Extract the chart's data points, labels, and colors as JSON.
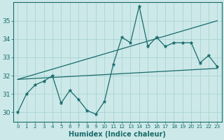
{
  "xlabel": "Humidex (Indice chaleur)",
  "bg_color": "#cce8e8",
  "line_color": "#1a6b6b",
  "grid_color": "#aad4d4",
  "ylim": [
    29.5,
    36.0
  ],
  "xlim": [
    -0.5,
    23.5
  ],
  "yticks": [
    30,
    31,
    32,
    33,
    34,
    35
  ],
  "xticks": [
    0,
    1,
    2,
    3,
    4,
    5,
    6,
    7,
    8,
    9,
    10,
    11,
    12,
    13,
    14,
    15,
    16,
    17,
    18,
    19,
    20,
    21,
    22,
    23
  ],
  "data_x": [
    0,
    1,
    2,
    3,
    4,
    5,
    6,
    7,
    8,
    9,
    10,
    11,
    12,
    13,
    14,
    15,
    16,
    17,
    18,
    19,
    20,
    21,
    22,
    23
  ],
  "data_y": [
    30.0,
    31.0,
    31.5,
    31.7,
    32.0,
    30.5,
    31.2,
    30.7,
    30.1,
    29.9,
    30.6,
    32.6,
    34.1,
    33.8,
    35.8,
    33.6,
    34.1,
    33.6,
    33.8,
    33.8,
    33.8,
    32.7,
    33.1,
    32.5
  ],
  "trend1_x": [
    0,
    23
  ],
  "trend1_y": [
    31.8,
    32.4
  ],
  "trend2_x": [
    0,
    23
  ],
  "trend2_y": [
    31.8,
    35.0
  ]
}
